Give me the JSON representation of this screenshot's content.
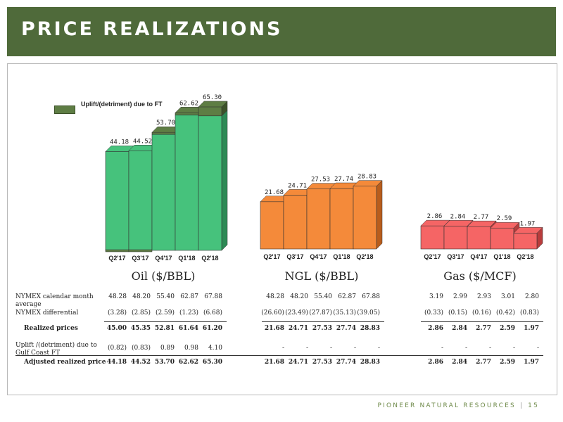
{
  "header": {
    "title": "PRICE REALIZATIONS"
  },
  "legend": {
    "label": "Uplift/(detriment) due to FT",
    "color": "#5e7d44"
  },
  "colors": {
    "oil": "#46c27c",
    "oil_dark": "#2d8a55",
    "ngl": "#f48a3a",
    "ngl_dark": "#b85d1c",
    "gas": "#f56565",
    "gas_dark": "#b83c3c",
    "uplift": "#5e7d44",
    "uplift_dark": "#3c5229"
  },
  "chart_data": [
    {
      "type": "bar",
      "title": "Oil ($/BBL)",
      "categories": [
        "Q2'17",
        "Q3'17",
        "Q4'17",
        "Q1'18",
        "Q2'18"
      ],
      "series": [
        {
          "name": "Realized prices",
          "values": [
            45.0,
            45.35,
            52.81,
            61.64,
            61.2
          ]
        },
        {
          "name": "Uplift/(detriment) due to FT",
          "values": [
            -0.82,
            -0.83,
            0.89,
            0.98,
            4.1
          ]
        }
      ],
      "data_labels": [
        "44.18",
        "44.52",
        "53.70",
        "62.62",
        "65.30"
      ],
      "totals": [
        44.18,
        44.52,
        53.7,
        62.62,
        65.3
      ],
      "ylim": [
        0,
        70
      ]
    },
    {
      "type": "bar",
      "title": "NGL ($/BBL)",
      "categories": [
        "Q2'17",
        "Q3'17",
        "Q4'17",
        "Q1'18",
        "Q2'18"
      ],
      "series": [
        {
          "name": "Realized prices",
          "values": [
            21.68,
            24.71,
            27.53,
            27.74,
            28.83
          ]
        }
      ],
      "data_labels": [
        "21.68",
        "24.71",
        "27.53",
        "27.74",
        "28.83"
      ],
      "totals": [
        21.68,
        24.71,
        27.53,
        27.74,
        28.83
      ],
      "ylim": [
        0,
        70
      ]
    },
    {
      "type": "bar",
      "title": "Gas ($/MCF)",
      "categories": [
        "Q2'17",
        "Q3'17",
        "Q4'17",
        "Q1'18",
        "Q2'18"
      ],
      "series": [
        {
          "name": "Realized prices",
          "values": [
            2.86,
            2.84,
            2.77,
            2.59,
            1.97
          ]
        }
      ],
      "data_labels": [
        "2.86",
        "2.84",
        "2.77",
        "2.59",
        "1.97"
      ],
      "totals": [
        2.86,
        2.84,
        2.77,
        2.59,
        1.97
      ],
      "ylim": [
        0,
        5
      ]
    }
  ],
  "table": {
    "rows": [
      {
        "label": "NYMEX calendar month average",
        "bold": false,
        "oil": [
          "48.28",
          "48.20",
          "55.40",
          "62.87",
          "67.88"
        ],
        "ngl": [
          "48.28",
          "48.20",
          "55.40",
          "62.87",
          "67.88"
        ],
        "gas": [
          "3.19",
          "2.99",
          "2.93",
          "3.01",
          "2.80"
        ]
      },
      {
        "label": "NYMEX differential",
        "bold": false,
        "oil": [
          "(3.28)",
          "(2.85)",
          "(2.59)",
          "(1.23)",
          "(6.68)"
        ],
        "ngl": [
          "(26.60)",
          "(23.49)",
          "(27.87)",
          "(35.13)",
          "(39.05)"
        ],
        "gas": [
          "(0.33)",
          "(0.15)",
          "(0.16)",
          "(0.42)",
          "(0.83)"
        ]
      },
      {
        "label": "Realized prices",
        "bold": true,
        "oil": [
          "45.00",
          "45.35",
          "52.81",
          "61.64",
          "61.20"
        ],
        "ngl": [
          "21.68",
          "24.71",
          "27.53",
          "27.74",
          "28.83"
        ],
        "gas": [
          "2.86",
          "2.84",
          "2.77",
          "2.59",
          "1.97"
        ]
      },
      {
        "label": "Uplift /(detriment) due to Gulf Coast FT",
        "bold": false,
        "oil": [
          "(0.82)",
          "(0.83)",
          "0.89",
          "0.98",
          "4.10"
        ],
        "ngl": [
          "-",
          "-",
          "-",
          "-",
          "-"
        ],
        "gas": [
          "-",
          "-",
          "-",
          "-",
          "-"
        ]
      },
      {
        "label": "Adjusted realized price",
        "bold": true,
        "oil": [
          "44.18",
          "44.52",
          "53.70",
          "62.62",
          "65.30"
        ],
        "ngl": [
          "21.68",
          "24.71",
          "27.53",
          "27.74",
          "28.83"
        ],
        "gas": [
          "2.86",
          "2.84",
          "2.77",
          "2.59",
          "1.97"
        ]
      }
    ]
  },
  "footer": {
    "company": "PIONEER NATURAL RESOURCES",
    "separator": "|",
    "page": "15"
  }
}
